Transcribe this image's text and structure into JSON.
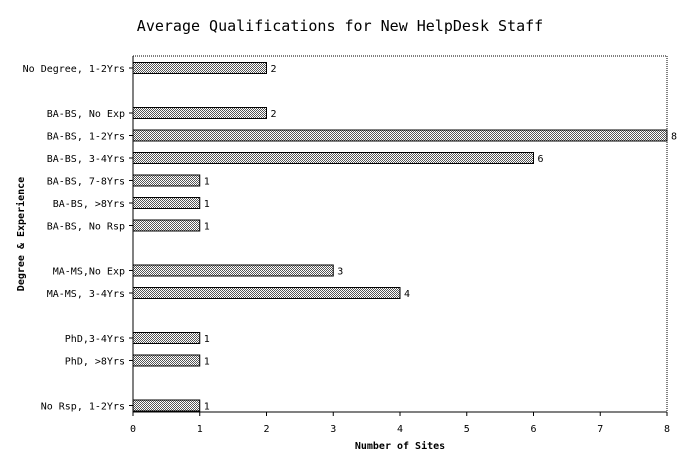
{
  "chart_data": {
    "type": "bar",
    "orientation": "horizontal",
    "title": "Average Qualifications for New HelpDesk Staff",
    "xlabel": "Number of Sites",
    "ylabel": "Degree & Experience",
    "xlim": [
      0,
      8
    ],
    "xticks": [
      "0",
      "1",
      "2",
      "3",
      "4",
      "5",
      "6",
      "7",
      "8"
    ],
    "grid": false,
    "legend": "none",
    "bar_color": "#9a9a9a",
    "categories": [
      "No Degree, 1-2Yrs",
      "",
      "BA-BS, No Exp",
      "BA-BS, 1-2Yrs",
      "BA-BS, 3-4Yrs",
      "BA-BS, 7-8Yrs",
      "BA-BS, >8Yrs",
      "BA-BS, No Rsp",
      "",
      "MA-MS,No Exp",
      "MA-MS, 3-4Yrs",
      "",
      "PhD,3-4Yrs",
      "PhD, >8Yrs",
      "",
      "No Rsp, 1-2Yrs"
    ],
    "values": [
      2,
      null,
      2,
      8,
      6,
      1,
      1,
      1,
      null,
      3,
      4,
      null,
      1,
      1,
      null,
      1
    ],
    "value_labels": [
      "2",
      "",
      "2",
      "8",
      "6",
      "1",
      "1",
      "1",
      "",
      "3",
      "4",
      "",
      "1",
      "1",
      "",
      "1"
    ]
  }
}
